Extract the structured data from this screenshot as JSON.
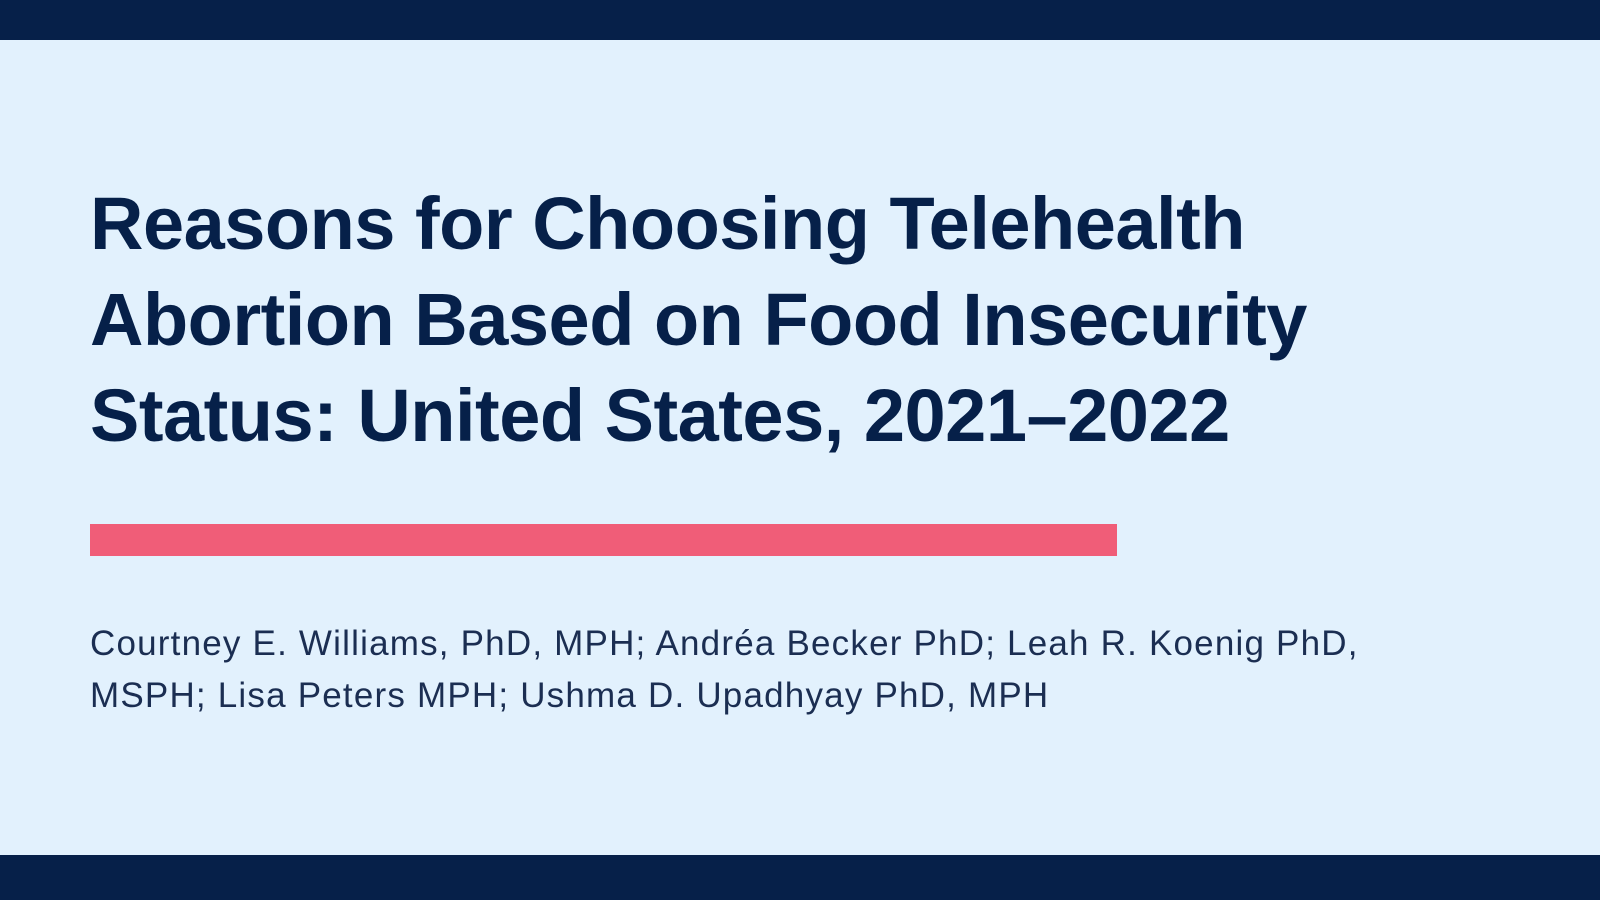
{
  "colors": {
    "background": "#e2f1fd",
    "bar": "#062049",
    "title_text": "#062049",
    "accent": "#f05d78",
    "author_text": "#1b2e52"
  },
  "title": {
    "lines": [
      "Reasons for Choosing Telehealth",
      "Abortion Based on Food Insecurity",
      "Status: United States, 2021–2022"
    ]
  },
  "authors": {
    "lines": [
      "Courtney E. Williams, PhD, MPH; Andréa Becker PhD; Leah R. Koenig PhD,",
      "MSPH; Lisa Peters MPH; Ushma D. Upadhyay PhD, MPH"
    ]
  }
}
